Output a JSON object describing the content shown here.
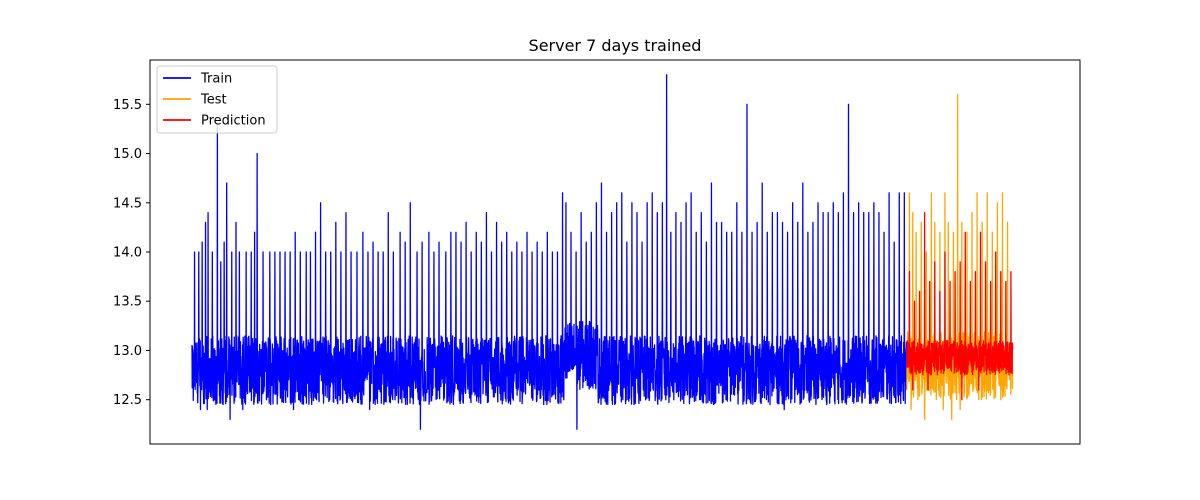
{
  "chart_data": {
    "type": "line",
    "title": "Server 7 days trained",
    "xlabel": "",
    "ylabel": "",
    "xlim": [
      0,
      1000
    ],
    "ylim": [
      12.05,
      15.95
    ],
    "y_ticks": [
      12.5,
      13.0,
      13.5,
      14.0,
      14.5,
      15.0,
      15.5
    ],
    "y_tick_labels": [
      "12.5",
      "13.0",
      "13.5",
      "14.0",
      "14.5",
      "15.0",
      "15.5"
    ],
    "x_ticks": [],
    "grid": false,
    "legend_position": "top-left",
    "series": [
      {
        "name": "Train",
        "color": "#0000ff",
        "x_range": [
          0,
          845
        ],
        "baseline": 12.9,
        "noise_low": 12.45,
        "noise_high": 13.15,
        "spikes": [
          [
            3,
            14.0
          ],
          [
            8,
            14.0
          ],
          [
            12,
            14.1
          ],
          [
            16,
            14.3
          ],
          [
            19,
            14.4
          ],
          [
            24,
            14.0
          ],
          [
            30,
            15.3
          ],
          [
            34,
            13.9
          ],
          [
            38,
            14.1
          ],
          [
            41,
            14.7
          ],
          [
            47,
            14.0
          ],
          [
            52,
            14.3
          ],
          [
            56,
            14.0
          ],
          [
            64,
            14.0
          ],
          [
            70,
            14.0
          ],
          [
            74,
            14.2
          ],
          [
            77,
            15.0
          ],
          [
            84,
            14.0
          ],
          [
            92,
            14.0
          ],
          [
            98,
            14.0
          ],
          [
            104,
            14.0
          ],
          [
            110,
            14.0
          ],
          [
            116,
            14.0
          ],
          [
            122,
            14.2
          ],
          [
            128,
            14.0
          ],
          [
            135,
            14.0
          ],
          [
            140,
            14.0
          ],
          [
            146,
            14.2
          ],
          [
            152,
            14.5
          ],
          [
            158,
            14.0
          ],
          [
            164,
            14.0
          ],
          [
            170,
            14.3
          ],
          [
            176,
            14.0
          ],
          [
            182,
            14.4
          ],
          [
            188,
            14.0
          ],
          [
            195,
            14.0
          ],
          [
            202,
            14.2
          ],
          [
            208,
            14.0
          ],
          [
            214,
            14.1
          ],
          [
            220,
            14.0
          ],
          [
            226,
            14.0
          ],
          [
            232,
            14.4
          ],
          [
            238,
            14.0
          ],
          [
            246,
            14.2
          ],
          [
            252,
            14.1
          ],
          [
            258,
            14.5
          ],
          [
            266,
            14.0
          ],
          [
            272,
            14.1
          ],
          [
            280,
            14.2
          ],
          [
            286,
            14.0
          ],
          [
            292,
            14.1
          ],
          [
            300,
            14.0
          ],
          [
            306,
            14.2
          ],
          [
            312,
            14.2
          ],
          [
            318,
            14.1
          ],
          [
            324,
            14.3
          ],
          [
            330,
            14.0
          ],
          [
            336,
            14.2
          ],
          [
            342,
            14.1
          ],
          [
            348,
            14.4
          ],
          [
            354,
            14.0
          ],
          [
            360,
            14.3
          ],
          [
            366,
            14.1
          ],
          [
            372,
            14.2
          ],
          [
            378,
            14.0
          ],
          [
            384,
            14.1
          ],
          [
            390,
            14.0
          ],
          [
            396,
            14.2
          ],
          [
            402,
            14.0
          ],
          [
            408,
            14.1
          ],
          [
            414,
            14.0
          ],
          [
            420,
            14.2
          ],
          [
            426,
            14.0
          ],
          [
            432,
            14.0
          ],
          [
            438,
            14.6
          ],
          [
            442,
            14.5
          ],
          [
            448,
            14.2
          ],
          [
            454,
            14.0
          ],
          [
            460,
            14.4
          ],
          [
            466,
            14.1
          ],
          [
            472,
            14.2
          ],
          [
            478,
            14.5
          ],
          [
            484,
            14.7
          ],
          [
            490,
            14.2
          ],
          [
            496,
            14.4
          ],
          [
            502,
            14.5
          ],
          [
            508,
            14.6
          ],
          [
            514,
            14.1
          ],
          [
            520,
            14.5
          ],
          [
            526,
            14.4
          ],
          [
            532,
            14.1
          ],
          [
            538,
            14.5
          ],
          [
            544,
            14.6
          ],
          [
            550,
            14.4
          ],
          [
            556,
            14.5
          ],
          [
            561,
            15.8
          ],
          [
            566,
            14.2
          ],
          [
            572,
            14.4
          ],
          [
            578,
            14.3
          ],
          [
            584,
            14.5
          ],
          [
            590,
            14.6
          ],
          [
            596,
            14.2
          ],
          [
            602,
            14.4
          ],
          [
            608,
            14.1
          ],
          [
            614,
            14.7
          ],
          [
            620,
            14.3
          ],
          [
            626,
            14.3
          ],
          [
            632,
            14.2
          ],
          [
            638,
            14.2
          ],
          [
            644,
            14.5
          ],
          [
            650,
            14.2
          ],
          [
            656,
            15.5
          ],
          [
            662,
            14.2
          ],
          [
            668,
            14.3
          ],
          [
            674,
            14.7
          ],
          [
            680,
            14.2
          ],
          [
            686,
            14.4
          ],
          [
            692,
            14.4
          ],
          [
            698,
            14.3
          ],
          [
            704,
            14.2
          ],
          [
            710,
            14.5
          ],
          [
            716,
            14.3
          ],
          [
            722,
            14.7
          ],
          [
            728,
            14.2
          ],
          [
            734,
            14.3
          ],
          [
            740,
            14.5
          ],
          [
            746,
            14.4
          ],
          [
            752,
            14.4
          ],
          [
            758,
            14.5
          ],
          [
            764,
            14.4
          ],
          [
            770,
            14.6
          ],
          [
            776,
            15.5
          ],
          [
            782,
            14.4
          ],
          [
            788,
            14.5
          ],
          [
            794,
            14.4
          ],
          [
            800,
            14.4
          ],
          [
            806,
            14.5
          ],
          [
            812,
            14.4
          ],
          [
            818,
            14.2
          ],
          [
            824,
            14.6
          ],
          [
            830,
            14.1
          ],
          [
            836,
            14.6
          ],
          [
            842,
            14.6
          ]
        ],
        "dips": [
          [
            10,
            12.4
          ],
          [
            18,
            12.4
          ],
          [
            28,
            12.5
          ],
          [
            45,
            12.3
          ],
          [
            60,
            12.4
          ],
          [
            88,
            12.5
          ],
          [
            120,
            12.4
          ],
          [
            150,
            12.5
          ],
          [
            170,
            12.2
          ],
          [
            210,
            12.4
          ],
          [
            240,
            12.5
          ],
          [
            270,
            12.2
          ],
          [
            300,
            12.4
          ],
          [
            330,
            12.4
          ],
          [
            360,
            12.3
          ],
          [
            390,
            12.4
          ],
          [
            420,
            12.3
          ],
          [
            455,
            12.2
          ],
          [
            480,
            12.6
          ],
          [
            520,
            12.5
          ],
          [
            560,
            12.5
          ],
          [
            600,
            12.5
          ],
          [
            650,
            12.4
          ],
          [
            680,
            12.2
          ],
          [
            700,
            12.4
          ],
          [
            740,
            12.5
          ],
          [
            790,
            12.6
          ]
        ]
      },
      {
        "name": "Test",
        "color": "#ffa500",
        "x_range": [
          845,
          970
        ],
        "baseline": 12.9,
        "noise_low": 12.5,
        "noise_high": 13.2,
        "spikes": [
          [
            848,
            14.6
          ],
          [
            852,
            14.4
          ],
          [
            856,
            14.2
          ],
          [
            862,
            14.3
          ],
          [
            868,
            14.0
          ],
          [
            874,
            14.6
          ],
          [
            878,
            14.3
          ],
          [
            884,
            14.2
          ],
          [
            890,
            14.6
          ],
          [
            894,
            14.3
          ],
          [
            900,
            14.2
          ],
          [
            905,
            15.6
          ],
          [
            910,
            14.3
          ],
          [
            916,
            14.2
          ],
          [
            922,
            14.4
          ],
          [
            928,
            14.6
          ],
          [
            934,
            14.3
          ],
          [
            940,
            14.6
          ],
          [
            946,
            14.2
          ],
          [
            952,
            14.5
          ],
          [
            958,
            14.6
          ],
          [
            964,
            14.3
          ]
        ],
        "dips": [
          [
            850,
            12.4
          ],
          [
            858,
            12.5
          ],
          [
            866,
            12.3
          ],
          [
            876,
            12.6
          ],
          [
            888,
            12.4
          ],
          [
            898,
            12.3
          ],
          [
            908,
            12.4
          ],
          [
            918,
            12.6
          ],
          [
            930,
            12.5
          ],
          [
            942,
            12.6
          ],
          [
            956,
            12.5
          ]
        ]
      },
      {
        "name": "Prediction",
        "color": "#ff0000",
        "x_range": [
          845,
          970
        ],
        "baseline": 12.9,
        "noise_low": 12.75,
        "noise_high": 13.1,
        "spikes": [
          [
            848,
            13.8
          ],
          [
            854,
            13.5
          ],
          [
            860,
            13.6
          ],
          [
            866,
            14.4
          ],
          [
            872,
            13.7
          ],
          [
            878,
            13.9
          ],
          [
            884,
            13.6
          ],
          [
            890,
            14.0
          ],
          [
            896,
            13.7
          ],
          [
            902,
            13.8
          ],
          [
            908,
            13.9
          ],
          [
            914,
            14.2
          ],
          [
            920,
            13.7
          ],
          [
            926,
            13.8
          ],
          [
            932,
            14.2
          ],
          [
            938,
            13.9
          ],
          [
            944,
            13.7
          ],
          [
            950,
            14.0
          ],
          [
            956,
            13.8
          ],
          [
            962,
            13.7
          ],
          [
            968,
            13.8
          ]
        ],
        "dips": [
          [
            852,
            12.6
          ],
          [
            870,
            12.6
          ],
          [
            890,
            12.6
          ],
          [
            910,
            12.5
          ],
          [
            930,
            12.6
          ],
          [
            950,
            12.7
          ]
        ]
      }
    ]
  }
}
